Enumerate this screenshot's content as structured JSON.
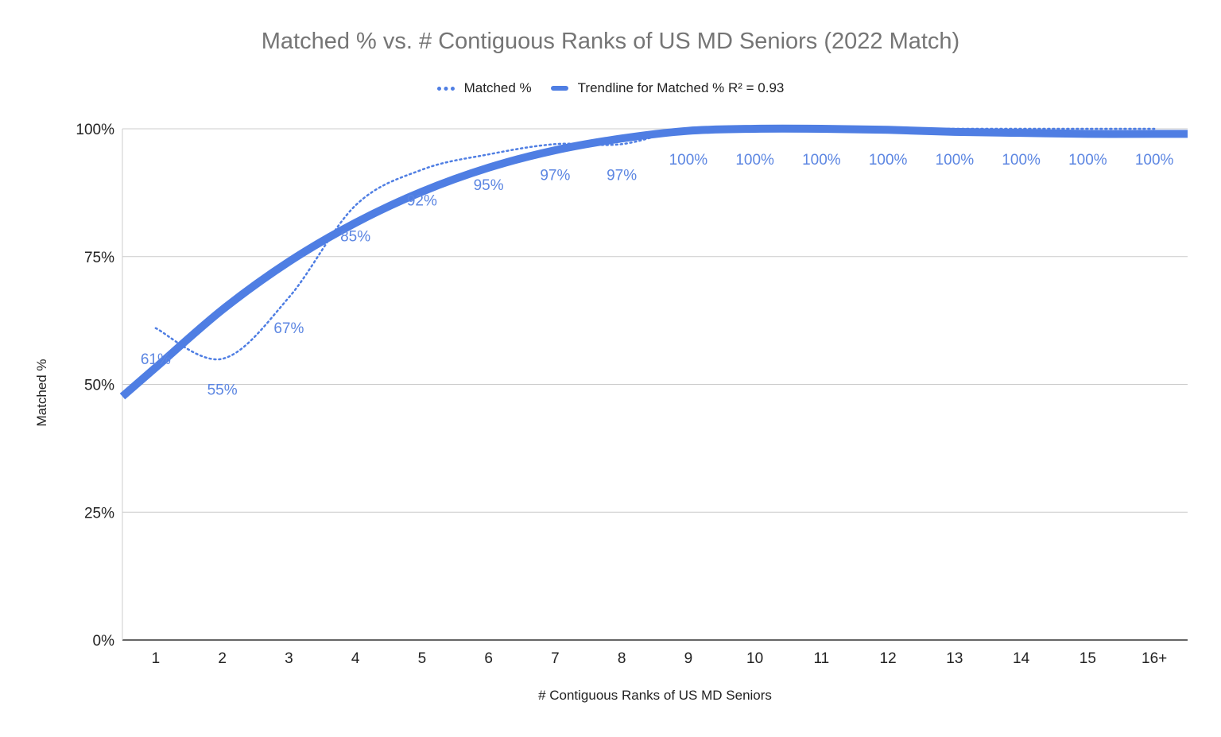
{
  "chart_data": {
    "type": "line",
    "title": "Matched % vs. # Contiguous Ranks of US MD Seniors (2022 Match)",
    "xlabel": "# Contiguous Ranks of US MD Seniors",
    "ylabel": "Matched %",
    "categories": [
      "1",
      "2",
      "3",
      "4",
      "5",
      "6",
      "7",
      "8",
      "9",
      "10",
      "11",
      "12",
      "13",
      "14",
      "15",
      "16+"
    ],
    "series": [
      {
        "name": "Matched %",
        "style": "dotted",
        "values": [
          61,
          55,
          67,
          85,
          92,
          95,
          97,
          97,
          100,
          100,
          100,
          100,
          100,
          100,
          100,
          100
        ],
        "data_labels": [
          "61%",
          "55%",
          "67%",
          "85%",
          "92%",
          "95%",
          "97%",
          "97%",
          "100%",
          "100%",
          "100%",
          "100%",
          "100%",
          "100%",
          "100%",
          "100%"
        ]
      },
      {
        "name": "Trendline for Matched % R² = 0.93",
        "style": "solid-thick",
        "values": [
          53.3,
          64.6,
          74.0,
          81.6,
          87.7,
          92.4,
          95.8,
          98.1,
          99.6,
          100.0,
          100.0,
          99.8,
          99.4,
          99.2,
          99.0,
          99.0
        ]
      }
    ],
    "ylim": [
      0,
      100
    ],
    "yticks": [
      "0%",
      "25%",
      "50%",
      "75%",
      "100%"
    ],
    "grid": true,
    "legend": "top",
    "colors": {
      "series": "#4f7ee3",
      "label": "#5c86e2",
      "grid": "#cccccc",
      "axis": "#333333",
      "title": "#757575"
    }
  }
}
